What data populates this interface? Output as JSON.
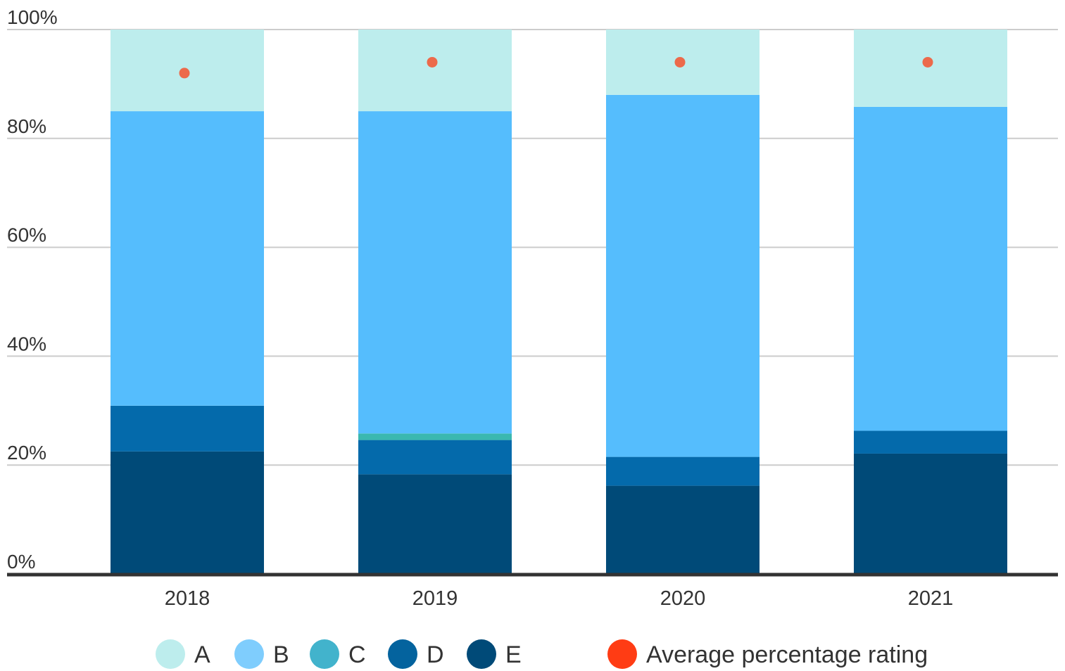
{
  "chart_data": {
    "type": "bar",
    "stacked": true,
    "categories": [
      "2018",
      "2019",
      "2020",
      "2021"
    ],
    "series": [
      {
        "name": "E",
        "color": "#004a78",
        "values": [
          22.5,
          18.3,
          16.2,
          22.1
        ]
      },
      {
        "name": "D",
        "color": "#046aab",
        "values": [
          8.4,
          6.3,
          5.3,
          4.2
        ]
      },
      {
        "name": "C",
        "color": "#3ab8b0",
        "values": [
          0,
          1.2,
          0,
          0
        ]
      },
      {
        "name": "B",
        "color": "#55bdfd",
        "values": [
          54.1,
          59.2,
          66.5,
          59.5
        ]
      },
      {
        "name": "A",
        "color": "#bdeded",
        "values": [
          15.0,
          15.0,
          12.0,
          14.2
        ]
      }
    ],
    "overlay": {
      "name": "Average percentage rating",
      "type": "scatter",
      "color": "#ec6a4b",
      "values": [
        92,
        94,
        94,
        94
      ]
    },
    "legend": {
      "position": "bottom",
      "items": [
        {
          "label": "A",
          "color": "#bdeded"
        },
        {
          "label": "B",
          "color": "#7fcdfd"
        },
        {
          "label": "C",
          "color": "#42b3cc"
        },
        {
          "label": "D",
          "color": "#04639e"
        },
        {
          "label": "E",
          "color": "#004a78"
        },
        {
          "label": "Average percentage rating",
          "color": "#ff3c14"
        }
      ]
    },
    "y_ticks": [
      "0%",
      "20%",
      "40%",
      "60%",
      "80%",
      "100%"
    ],
    "ylim": [
      0,
      100
    ],
    "grid": true,
    "colors": {
      "grid": "#cccccc",
      "axis": "#333333",
      "text": "#333333"
    }
  }
}
